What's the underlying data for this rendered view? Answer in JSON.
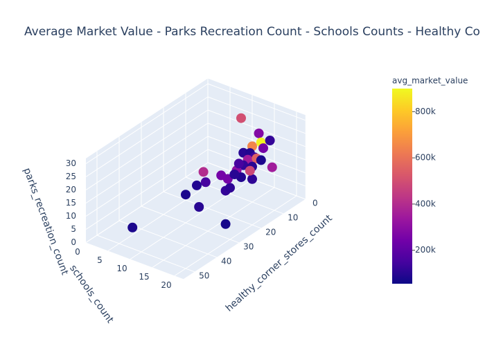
{
  "chart_data": {
    "type": "scatter3d",
    "title": "Average Market Value - Parks Recreation Count - Schools Counts - Healthy Co",
    "xlabel": "healthy_corner_stores_count",
    "ylabel": "schools_count",
    "zlabel": "parks_recreation_count",
    "xlim": [
      0,
      55
    ],
    "xticks": [
      0,
      10,
      20,
      30,
      40,
      50
    ],
    "ylim": [
      0,
      22
    ],
    "yticks": [
      0,
      5,
      10,
      15,
      20
    ],
    "zlim": [
      0,
      32
    ],
    "zticks": [
      0,
      5,
      10,
      15,
      20,
      25,
      30
    ],
    "x": [
      50,
      24,
      22,
      28,
      21,
      17,
      14,
      12,
      14,
      8,
      5,
      5,
      3,
      2,
      2,
      4,
      3,
      6,
      5,
      5,
      6,
      4,
      8,
      6,
      3,
      9,
      9,
      8,
      10,
      7,
      4,
      8
    ],
    "y": [
      8,
      16,
      9,
      9,
      8,
      8,
      11,
      11,
      6,
      7,
      7,
      10,
      13,
      13,
      15,
      12,
      14,
      11,
      12,
      13,
      12,
      13,
      12,
      13,
      16,
      11,
      12,
      14,
      11,
      13,
      14,
      11
    ],
    "z": [
      8,
      0,
      1,
      9,
      8,
      7,
      4,
      4,
      8,
      4,
      1,
      26,
      21,
      17,
      19,
      16,
      16,
      14,
      14,
      13,
      12,
      12,
      11,
      10,
      10,
      9,
      7,
      7,
      8,
      9,
      12,
      11
    ],
    "color_values": [
      80000,
      70000,
      100000,
      80000,
      90000,
      150000,
      120000,
      110000,
      400000,
      250000,
      250000,
      500000,
      280000,
      890000,
      120000,
      650000,
      250000,
      100000,
      90000,
      130000,
      350000,
      550000,
      120000,
      100000,
      350000,
      300000,
      90000,
      110000,
      100000,
      480000,
      80000,
      150000
    ],
    "colorscale": "Plasma",
    "colorbar": {
      "title": "avg_market_value",
      "lim": [
        55000,
        900000
      ],
      "ticks": [
        {
          "value": 200000,
          "label": "200k"
        },
        {
          "value": 400000,
          "label": "400k"
        },
        {
          "value": 600000,
          "label": "600k"
        },
        {
          "value": 800000,
          "label": "800k"
        }
      ]
    }
  }
}
